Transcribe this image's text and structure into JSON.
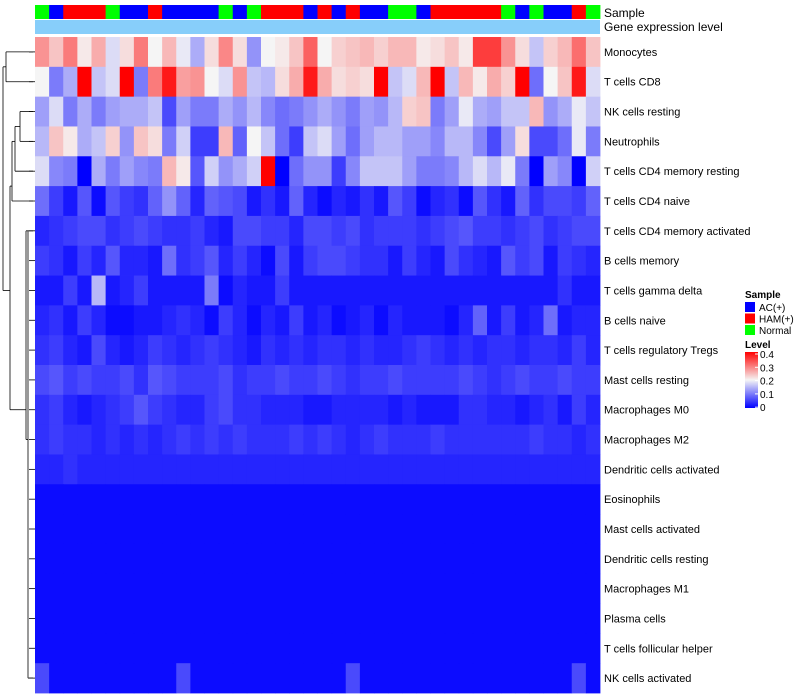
{
  "chart_data": {
    "type": "heatmap",
    "annotation_rows": [
      "Sample",
      "Gene expression level"
    ],
    "row_labels": [
      "Monocytes",
      "T cells CD8",
      "NK cells resting",
      "Neutrophils",
      "T cells CD4 memory resting",
      "T cells CD4 naive",
      "T cells CD4 memory activated",
      "B cells memory",
      "T cells gamma delta",
      "B cells naive",
      "T cells regulatory  Tregs",
      "Mast cells resting",
      "Macrophages M0",
      "Macrophages M2",
      "Dendritic cells activated",
      "Eosinophils",
      "Mast cells activated",
      "Dendritic cells resting",
      "Macrophages M1",
      "Plasma cells",
      "T cells follicular helper",
      "NK cells activated"
    ],
    "sample_groups": [
      "Normal",
      "AC(+)",
      "HAM(+)",
      "HAM(+)",
      "HAM(+)",
      "Normal",
      "AC(+)",
      "AC(+)",
      "HAM(+)",
      "AC(+)",
      "AC(+)",
      "AC(+)",
      "AC(+)",
      "Normal",
      "AC(+)",
      "Normal",
      "HAM(+)",
      "HAM(+)",
      "HAM(+)",
      "AC(+)",
      "HAM(+)",
      "AC(+)",
      "HAM(+)",
      "AC(+)",
      "AC(+)",
      "Normal",
      "Normal",
      "AC(+)",
      "HAM(+)",
      "HAM(+)",
      "HAM(+)",
      "HAM(+)",
      "HAM(+)",
      "Normal",
      "AC(+)",
      "Normal",
      "AC(+)",
      "AC(+)",
      "HAM(+)",
      "Normal"
    ],
    "values": [
      [
        0.28,
        0.24,
        0.3,
        0.21,
        0.26,
        0.18,
        0.22,
        0.3,
        0.2,
        0.25,
        0.19,
        0.14,
        0.22,
        0.29,
        0.22,
        0.12,
        0.2,
        0.21,
        0.24,
        0.32,
        0.2,
        0.23,
        0.24,
        0.25,
        0.23,
        0.25,
        0.25,
        0.21,
        0.22,
        0.24,
        0.21,
        0.35,
        0.35,
        0.28,
        0.22,
        0.16,
        0.23,
        0.25,
        0.31,
        0.24
      ],
      [
        0.2,
        0.1,
        0.14,
        0.4,
        0.16,
        0.18,
        0.4,
        0.1,
        0.3,
        0.38,
        0.27,
        0.28,
        0.2,
        0.18,
        0.28,
        0.16,
        0.15,
        0.22,
        0.26,
        0.38,
        0.26,
        0.22,
        0.23,
        0.22,
        0.4,
        0.16,
        0.18,
        0.25,
        0.4,
        0.16,
        0.25,
        0.21,
        0.26,
        0.23,
        0.4,
        0.09,
        0.2,
        0.24,
        0.38,
        0.18
      ],
      [
        0.13,
        0.18,
        0.1,
        0.14,
        0.1,
        0.13,
        0.14,
        0.14,
        0.16,
        0.06,
        0.13,
        0.1,
        0.1,
        0.14,
        0.12,
        0.15,
        0.11,
        0.09,
        0.1,
        0.12,
        0.14,
        0.12,
        0.1,
        0.13,
        0.12,
        0.15,
        0.23,
        0.24,
        0.1,
        0.13,
        0.19,
        0.14,
        0.13,
        0.16,
        0.16,
        0.25,
        0.12,
        0.14,
        0.19,
        0.16
      ],
      [
        0.15,
        0.24,
        0.21,
        0.14,
        0.16,
        0.23,
        0.12,
        0.24,
        0.22,
        0.1,
        0.17,
        0.05,
        0.05,
        0.25,
        0.08,
        0.2,
        0.16,
        0.09,
        0.05,
        0.16,
        0.18,
        0.13,
        0.09,
        0.13,
        0.15,
        0.15,
        0.13,
        0.13,
        0.11,
        0.15,
        0.15,
        0.11,
        0.06,
        0.13,
        0.22,
        0.06,
        0.06,
        0.09,
        0.19,
        0.1
      ],
      [
        0.18,
        0.11,
        0.1,
        0.0,
        0.14,
        0.1,
        0.13,
        0.11,
        0.1,
        0.25,
        0.21,
        0.07,
        0.17,
        0.12,
        0.14,
        0.17,
        0.4,
        0.0,
        0.09,
        0.12,
        0.12,
        0.05,
        0.11,
        0.16,
        0.16,
        0.16,
        0.13,
        0.1,
        0.1,
        0.11,
        0.15,
        0.18,
        0.15,
        0.19,
        0.1,
        0.0,
        0.13,
        0.11,
        0.0,
        0.17
      ],
      [
        0.09,
        0.05,
        0.02,
        0.07,
        0.01,
        0.07,
        0.05,
        0.04,
        0.08,
        0.12,
        0.08,
        0.03,
        0.08,
        0.07,
        0.06,
        0.02,
        0.04,
        0.02,
        0.08,
        0.03,
        0.01,
        0.03,
        0.02,
        0.04,
        0.02,
        0.07,
        0.05,
        0.01,
        0.03,
        0.04,
        0.01,
        0.07,
        0.04,
        0.02,
        0.08,
        0.04,
        0.06,
        0.06,
        0.05,
        0.08
      ],
      [
        0.03,
        0.04,
        0.05,
        0.06,
        0.06,
        0.04,
        0.05,
        0.06,
        0.05,
        0.04,
        0.04,
        0.05,
        0.03,
        0.02,
        0.06,
        0.06,
        0.05,
        0.05,
        0.03,
        0.06,
        0.06,
        0.05,
        0.06,
        0.04,
        0.05,
        0.05,
        0.05,
        0.04,
        0.05,
        0.06,
        0.07,
        0.05,
        0.05,
        0.04,
        0.05,
        0.06,
        0.04,
        0.05,
        0.06,
        0.06
      ],
      [
        0.05,
        0.04,
        0.02,
        0.05,
        0.03,
        0.07,
        0.03,
        0.03,
        0.02,
        0.09,
        0.04,
        0.05,
        0.07,
        0.03,
        0.05,
        0.03,
        0.01,
        0.06,
        0.02,
        0.05,
        0.06,
        0.06,
        0.05,
        0.04,
        0.04,
        0.02,
        0.05,
        0.03,
        0.02,
        0.06,
        0.04,
        0.03,
        0.02,
        0.07,
        0.05,
        0.06,
        0.02,
        0.05,
        0.04,
        0.03
      ],
      [
        0.02,
        0.02,
        0.05,
        0.02,
        0.15,
        0.02,
        0.03,
        0.05,
        0.02,
        0.02,
        0.02,
        0.02,
        0.1,
        0.01,
        0.03,
        0.02,
        0.02,
        0.05,
        0.02,
        0.02,
        0.02,
        0.02,
        0.02,
        0.02,
        0.02,
        0.02,
        0.02,
        0.02,
        0.02,
        0.02,
        0.02,
        0.02,
        0.02,
        0.02,
        0.02,
        0.02,
        0.02,
        0.04,
        0.02,
        0.02
      ],
      [
        0.03,
        0.04,
        0.02,
        0.05,
        0.03,
        0.01,
        0.01,
        0.02,
        0.02,
        0.03,
        0.04,
        0.03,
        0.01,
        0.05,
        0.03,
        0.01,
        0.03,
        0.02,
        0.05,
        0.02,
        0.03,
        0.01,
        0.02,
        0.03,
        0.01,
        0.03,
        0.02,
        0.02,
        0.02,
        0.01,
        0.03,
        0.08,
        0.02,
        0.05,
        0.02,
        0.03,
        0.09,
        0.02,
        0.03,
        0.03
      ],
      [
        0.04,
        0.05,
        0.03,
        0.02,
        0.06,
        0.03,
        0.02,
        0.03,
        0.05,
        0.04,
        0.03,
        0.04,
        0.05,
        0.04,
        0.03,
        0.02,
        0.04,
        0.03,
        0.04,
        0.03,
        0.04,
        0.04,
        0.03,
        0.04,
        0.03,
        0.03,
        0.04,
        0.05,
        0.04,
        0.03,
        0.04,
        0.03,
        0.04,
        0.04,
        0.03,
        0.04,
        0.04,
        0.03,
        0.05,
        0.03
      ],
      [
        0.06,
        0.07,
        0.05,
        0.06,
        0.05,
        0.05,
        0.06,
        0.04,
        0.07,
        0.06,
        0.05,
        0.05,
        0.05,
        0.06,
        0.04,
        0.05,
        0.05,
        0.06,
        0.05,
        0.05,
        0.06,
        0.05,
        0.04,
        0.05,
        0.05,
        0.06,
        0.05,
        0.05,
        0.05,
        0.05,
        0.06,
        0.05,
        0.04,
        0.05,
        0.06,
        0.05,
        0.05,
        0.06,
        0.05,
        0.05
      ],
      [
        0.04,
        0.05,
        0.03,
        0.02,
        0.03,
        0.04,
        0.05,
        0.07,
        0.05,
        0.04,
        0.03,
        0.03,
        0.05,
        0.06,
        0.04,
        0.04,
        0.03,
        0.03,
        0.03,
        0.02,
        0.02,
        0.03,
        0.03,
        0.03,
        0.03,
        0.02,
        0.03,
        0.02,
        0.02,
        0.02,
        0.04,
        0.04,
        0.03,
        0.03,
        0.02,
        0.03,
        0.04,
        0.02,
        0.05,
        0.03
      ],
      [
        0.04,
        0.05,
        0.04,
        0.04,
        0.03,
        0.04,
        0.03,
        0.04,
        0.03,
        0.04,
        0.05,
        0.04,
        0.05,
        0.04,
        0.05,
        0.04,
        0.04,
        0.04,
        0.05,
        0.04,
        0.05,
        0.04,
        0.03,
        0.04,
        0.05,
        0.04,
        0.04,
        0.04,
        0.05,
        0.04,
        0.04,
        0.04,
        0.04,
        0.04,
        0.04,
        0.05,
        0.04,
        0.04,
        0.03,
        0.04
      ],
      [
        0.03,
        0.03,
        0.04,
        0.03,
        0.03,
        0.03,
        0.03,
        0.03,
        0.03,
        0.03,
        0.03,
        0.03,
        0.03,
        0.03,
        0.03,
        0.03,
        0.03,
        0.03,
        0.03,
        0.03,
        0.03,
        0.03,
        0.03,
        0.03,
        0.03,
        0.03,
        0.03,
        0.03,
        0.03,
        0.03,
        0.03,
        0.03,
        0.03,
        0.03,
        0.03,
        0.03,
        0.03,
        0.03,
        0.03,
        0.03
      ],
      [
        0.01,
        0.01,
        0.01,
        0.01,
        0.01,
        0.01,
        0.01,
        0.01,
        0.01,
        0.01,
        0.01,
        0.01,
        0.01,
        0.01,
        0.01,
        0.01,
        0.01,
        0.01,
        0.01,
        0.01,
        0.01,
        0.01,
        0.01,
        0.01,
        0.01,
        0.01,
        0.01,
        0.01,
        0.01,
        0.01,
        0.01,
        0.01,
        0.01,
        0.01,
        0.01,
        0.01,
        0.01,
        0.01,
        0.01,
        0.01
      ],
      [
        0.01,
        0.01,
        0.01,
        0.01,
        0.01,
        0.01,
        0.01,
        0.01,
        0.01,
        0.01,
        0.01,
        0.01,
        0.01,
        0.01,
        0.01,
        0.01,
        0.01,
        0.01,
        0.01,
        0.01,
        0.01,
        0.01,
        0.01,
        0.01,
        0.01,
        0.01,
        0.01,
        0.01,
        0.01,
        0.01,
        0.01,
        0.01,
        0.01,
        0.01,
        0.01,
        0.01,
        0.01,
        0.01,
        0.01,
        0.01
      ],
      [
        0.01,
        0.01,
        0.01,
        0.01,
        0.01,
        0.01,
        0.01,
        0.01,
        0.01,
        0.01,
        0.01,
        0.01,
        0.01,
        0.01,
        0.01,
        0.01,
        0.01,
        0.01,
        0.01,
        0.01,
        0.01,
        0.01,
        0.01,
        0.01,
        0.01,
        0.01,
        0.01,
        0.01,
        0.01,
        0.01,
        0.01,
        0.01,
        0.01,
        0.01,
        0.01,
        0.01,
        0.01,
        0.01,
        0.01,
        0.01
      ],
      [
        0.01,
        0.01,
        0.01,
        0.01,
        0.01,
        0.01,
        0.01,
        0.01,
        0.01,
        0.01,
        0.01,
        0.01,
        0.01,
        0.01,
        0.01,
        0.01,
        0.01,
        0.01,
        0.01,
        0.01,
        0.01,
        0.01,
        0.01,
        0.01,
        0.01,
        0.01,
        0.01,
        0.01,
        0.01,
        0.01,
        0.01,
        0.01,
        0.01,
        0.01,
        0.01,
        0.01,
        0.01,
        0.01,
        0.01,
        0.01
      ],
      [
        0.01,
        0.01,
        0.01,
        0.01,
        0.01,
        0.01,
        0.01,
        0.01,
        0.01,
        0.01,
        0.01,
        0.01,
        0.01,
        0.01,
        0.01,
        0.01,
        0.01,
        0.01,
        0.01,
        0.01,
        0.01,
        0.01,
        0.01,
        0.01,
        0.01,
        0.01,
        0.01,
        0.01,
        0.01,
        0.01,
        0.01,
        0.01,
        0.01,
        0.01,
        0.01,
        0.01,
        0.01,
        0.01,
        0.01,
        0.01
      ],
      [
        0.01,
        0.01,
        0.01,
        0.01,
        0.01,
        0.01,
        0.01,
        0.01,
        0.01,
        0.01,
        0.01,
        0.01,
        0.01,
        0.01,
        0.01,
        0.01,
        0.01,
        0.01,
        0.01,
        0.01,
        0.01,
        0.01,
        0.01,
        0.01,
        0.01,
        0.01,
        0.01,
        0.01,
        0.01,
        0.01,
        0.01,
        0.01,
        0.01,
        0.01,
        0.01,
        0.01,
        0.01,
        0.01,
        0.01,
        0.01
      ],
      [
        0.06,
        0.01,
        0.01,
        0.01,
        0.01,
        0.01,
        0.01,
        0.01,
        0.01,
        0.01,
        0.06,
        0.01,
        0.01,
        0.01,
        0.01,
        0.01,
        0.01,
        0.01,
        0.01,
        0.01,
        0.01,
        0.01,
        0.06,
        0.01,
        0.01,
        0.01,
        0.01,
        0.01,
        0.01,
        0.01,
        0.01,
        0.01,
        0.01,
        0.01,
        0.01,
        0.01,
        0.01,
        0.01,
        0.06,
        0.01
      ]
    ],
    "color_scale": {
      "stops": [
        {
          "value": 0,
          "color": "#0000ff"
        },
        {
          "value": 0.2,
          "color": "#f5f5f5"
        },
        {
          "value": 0.4,
          "color": "#ff0000"
        }
      ],
      "range": [
        0,
        0.4
      ]
    },
    "legend": {
      "sample_title": "Sample",
      "sample_entries": [
        {
          "label": "AC(+)",
          "color": "#0000ff"
        },
        {
          "label": "HAM(+)",
          "color": "#ff0000"
        },
        {
          "label": "Normal",
          "color": "#00ff00"
        }
      ],
      "level_title": "Level",
      "level_ticks": [
        "0.4",
        "0.3",
        "0.2",
        "0.1",
        "0"
      ],
      "placement": "right"
    },
    "gene_expression_bar_color": "#87cefa",
    "dendrogram": "rows, left side"
  }
}
